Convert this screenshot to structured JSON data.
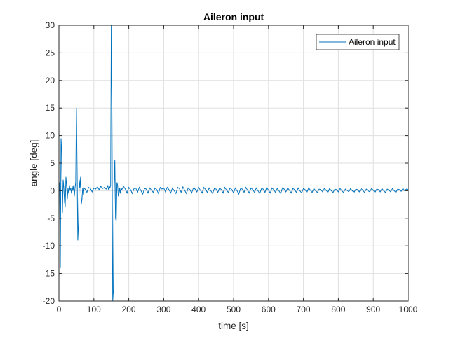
{
  "chart_data": {
    "type": "line",
    "title": "Aileron input",
    "xlabel": "time [s]",
    "ylabel": "angle [deg]",
    "xlim": [
      0,
      1000
    ],
    "ylim": [
      -20,
      30
    ],
    "xticks": [
      "0",
      "100",
      "200",
      "300",
      "400",
      "500",
      "600",
      "700",
      "800",
      "900",
      "1000"
    ],
    "yticks": [
      "30",
      "25",
      "20",
      "15",
      "10",
      "5",
      "0",
      "-5",
      "-10",
      "-15",
      "-20"
    ],
    "grid": true,
    "legend_position": "top-right",
    "series": [
      {
        "name": "Aileron input",
        "color": "#0072bd",
        "points": [
          [
            0,
            0
          ],
          [
            2,
            1.5
          ],
          [
            4,
            -14
          ],
          [
            6,
            9.5
          ],
          [
            8,
            7
          ],
          [
            10,
            -4
          ],
          [
            12,
            2
          ],
          [
            14,
            0.5
          ],
          [
            16,
            -2
          ],
          [
            18,
            -3
          ],
          [
            20,
            2.5
          ],
          [
            22,
            1
          ],
          [
            24,
            -1.5
          ],
          [
            26,
            0.5
          ],
          [
            28,
            -0.5
          ],
          [
            30,
            1
          ],
          [
            32,
            0
          ],
          [
            34,
            0.5
          ],
          [
            36,
            -0.5
          ],
          [
            38,
            0.8
          ],
          [
            40,
            0
          ],
          [
            42,
            1
          ],
          [
            44,
            -1
          ],
          [
            46,
            0.5
          ],
          [
            48,
            1.5
          ],
          [
            50,
            15
          ],
          [
            52,
            4
          ],
          [
            54,
            -9
          ],
          [
            56,
            -6
          ],
          [
            58,
            2
          ],
          [
            60,
            0.5
          ],
          [
            62,
            2.5
          ],
          [
            64,
            -2.5
          ],
          [
            66,
            -1.5
          ],
          [
            68,
            0.5
          ],
          [
            70,
            -0.8
          ],
          [
            72,
            0.5
          ],
          [
            75,
            0.3
          ],
          [
            80,
            -0.3
          ],
          [
            85,
            0.6
          ],
          [
            90,
            0.4
          ],
          [
            95,
            -0.2
          ],
          [
            100,
            0.5
          ],
          [
            105,
            0.3
          ],
          [
            110,
            0.7
          ],
          [
            115,
            0.2
          ],
          [
            120,
            0.8
          ],
          [
            125,
            0.4
          ],
          [
            130,
            0.6
          ],
          [
            135,
            0.3
          ],
          [
            140,
            0.9
          ],
          [
            142,
            0.2
          ],
          [
            144,
            0.8
          ],
          [
            146,
            0.5
          ],
          [
            148,
            1.0
          ],
          [
            150,
            32
          ],
          [
            152,
            11
          ],
          [
            154,
            -20
          ],
          [
            156,
            -18
          ],
          [
            158,
            1
          ],
          [
            160,
            5.5
          ],
          [
            162,
            -5
          ],
          [
            164,
            -5.5
          ],
          [
            166,
            1.5
          ],
          [
            168,
            1
          ],
          [
            170,
            -1
          ],
          [
            172,
            -0.5
          ],
          [
            174,
            0.5
          ],
          [
            176,
            -0.5
          ],
          [
            178,
            0.5
          ],
          [
            180,
            0.2
          ],
          [
            185,
            0.8
          ],
          [
            190,
            0.3
          ],
          [
            195,
            -0.4
          ],
          [
            200,
            0.6
          ],
          [
            205,
            0.2
          ],
          [
            210,
            -0.5
          ],
          [
            215,
            0.4
          ],
          [
            220,
            0.5
          ],
          [
            225,
            -0.3
          ],
          [
            230,
            0.6
          ],
          [
            235,
            0.0
          ],
          [
            240,
            -0.6
          ],
          [
            245,
            0.4
          ],
          [
            250,
            0.3
          ],
          [
            255,
            -0.4
          ],
          [
            260,
            0.5
          ],
          [
            265,
            0.1
          ],
          [
            270,
            -0.3
          ],
          [
            275,
            0.5
          ],
          [
            280,
            0.2
          ],
          [
            285,
            -0.5
          ],
          [
            290,
            0.6
          ],
          [
            295,
            0.3
          ],
          [
            300,
            0.5
          ],
          [
            305,
            -0.2
          ],
          [
            310,
            0.6
          ],
          [
            315,
            0.2
          ],
          [
            320,
            -0.4
          ],
          [
            325,
            0.5
          ],
          [
            330,
            0.0
          ],
          [
            335,
            -0.5
          ],
          [
            340,
            0.6
          ],
          [
            345,
            0.4
          ],
          [
            350,
            -0.3
          ],
          [
            355,
            0.7
          ],
          [
            360,
            0.1
          ],
          [
            365,
            -0.5
          ],
          [
            370,
            0.5
          ],
          [
            375,
            0.2
          ],
          [
            380,
            -0.4
          ],
          [
            385,
            0.5
          ],
          [
            390,
            0.3
          ],
          [
            395,
            -0.2
          ],
          [
            400,
            0.6
          ],
          [
            405,
            0.1
          ],
          [
            410,
            -0.4
          ],
          [
            415,
            0.6
          ],
          [
            420,
            0.2
          ],
          [
            425,
            -0.3
          ],
          [
            430,
            0.5
          ],
          [
            435,
            0.0
          ],
          [
            440,
            -0.5
          ],
          [
            445,
            0.4
          ],
          [
            450,
            0.3
          ],
          [
            455,
            -0.3
          ],
          [
            460,
            0.5
          ],
          [
            465,
            0.2
          ],
          [
            470,
            -0.4
          ],
          [
            475,
            0.6
          ],
          [
            480,
            0.1
          ],
          [
            485,
            -0.3
          ],
          [
            490,
            0.5
          ],
          [
            495,
            0.2
          ],
          [
            500,
            -0.4
          ],
          [
            505,
            0.5
          ],
          [
            510,
            0.0
          ],
          [
            515,
            -0.6
          ],
          [
            520,
            0.4
          ],
          [
            525,
            0.3
          ],
          [
            530,
            -0.3
          ],
          [
            535,
            0.6
          ],
          [
            540,
            0.1
          ],
          [
            545,
            -0.4
          ],
          [
            550,
            0.5
          ],
          [
            555,
            0.2
          ],
          [
            560,
            -0.3
          ],
          [
            565,
            0.5
          ],
          [
            570,
            0.0
          ],
          [
            575,
            -0.5
          ],
          [
            580,
            0.4
          ],
          [
            585,
            0.3
          ],
          [
            590,
            -0.3
          ],
          [
            595,
            0.6
          ],
          [
            600,
            0.1
          ],
          [
            605,
            -0.4
          ],
          [
            610,
            0.5
          ],
          [
            615,
            0.2
          ],
          [
            620,
            -0.3
          ],
          [
            625,
            0.4
          ],
          [
            630,
            0.0
          ],
          [
            635,
            -0.5
          ],
          [
            640,
            0.5
          ],
          [
            645,
            0.3
          ],
          [
            650,
            -0.2
          ],
          [
            655,
            0.5
          ],
          [
            660,
            0.1
          ],
          [
            665,
            -0.4
          ],
          [
            670,
            0.4
          ],
          [
            675,
            0.2
          ],
          [
            680,
            -0.3
          ],
          [
            685,
            0.5
          ],
          [
            690,
            0.0
          ],
          [
            695,
            -0.4
          ],
          [
            700,
            0.4
          ],
          [
            705,
            0.2
          ],
          [
            710,
            -0.3
          ],
          [
            715,
            0.5
          ],
          [
            720,
            0.1
          ],
          [
            725,
            -0.3
          ],
          [
            730,
            0.4
          ],
          [
            735,
            0.0
          ],
          [
            740,
            -0.3
          ],
          [
            745,
            0.3
          ],
          [
            750,
            0.2
          ],
          [
            755,
            -0.2
          ],
          [
            760,
            0.4
          ],
          [
            765,
            0.1
          ],
          [
            770,
            -0.3
          ],
          [
            775,
            0.4
          ],
          [
            780,
            0.0
          ],
          [
            785,
            -0.3
          ],
          [
            790,
            0.3
          ],
          [
            795,
            0.2
          ],
          [
            800,
            -0.2
          ],
          [
            805,
            0.4
          ],
          [
            810,
            0.0
          ],
          [
            815,
            -0.3
          ],
          [
            820,
            0.3
          ],
          [
            825,
            0.1
          ],
          [
            830,
            -0.2
          ],
          [
            835,
            0.4
          ],
          [
            840,
            0.0
          ],
          [
            845,
            -0.3
          ],
          [
            850,
            0.3
          ],
          [
            855,
            0.2
          ],
          [
            860,
            -0.2
          ],
          [
            865,
            0.4
          ],
          [
            870,
            0.1
          ],
          [
            875,
            -0.3
          ],
          [
            880,
            0.3
          ],
          [
            885,
            0.0
          ],
          [
            890,
            -0.2
          ],
          [
            895,
            0.4
          ],
          [
            900,
            0.1
          ],
          [
            905,
            -0.3
          ],
          [
            910,
            0.3
          ],
          [
            915,
            0.2
          ],
          [
            920,
            -0.2
          ],
          [
            925,
            0.4
          ],
          [
            930,
            0.0
          ],
          [
            935,
            -0.3
          ],
          [
            940,
            0.3
          ],
          [
            945,
            0.1
          ],
          [
            950,
            -0.2
          ],
          [
            955,
            0.4
          ],
          [
            960,
            0.0
          ],
          [
            965,
            -0.3
          ],
          [
            970,
            0.3
          ],
          [
            975,
            0.2
          ],
          [
            980,
            -0.1
          ],
          [
            985,
            0.4
          ],
          [
            990,
            0.0
          ],
          [
            995,
            0.3
          ],
          [
            1000,
            0.1
          ]
        ]
      }
    ]
  }
}
